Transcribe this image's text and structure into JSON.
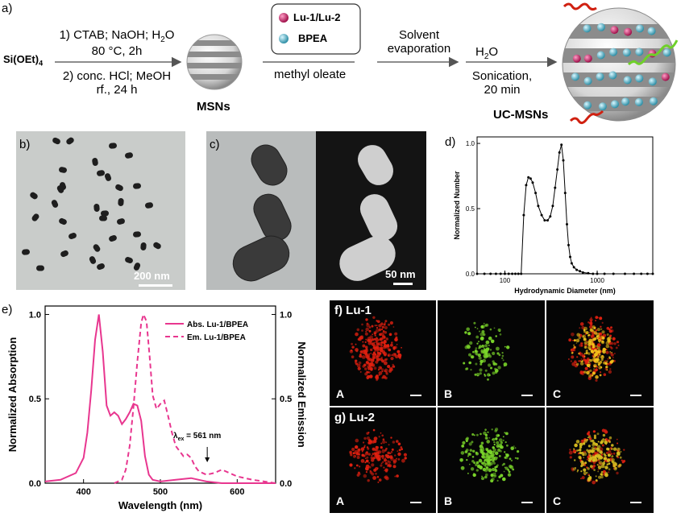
{
  "colors": {
    "accent": "#e8368f",
    "lu": "#c2185b",
    "bpea": "#5ab4c8",
    "green": "#7bd62a",
    "red": "#e02010"
  },
  "panel_a": {
    "tag": "a)",
    "reactant": "Si(OEt)",
    "reactant_sub": "4",
    "step1_line1": "1) CTAB; NaOH; H",
    "step1_line1_sub": "2",
    "step1_line1_tail": "O",
    "step1_line2": "80 °C, 2h",
    "step2_line1": "2) conc. HCl; MeOH",
    "step2_line2": "rf., 24 h",
    "msn_label": "MSNs",
    "legend_lu": "Lu-1/Lu-2",
    "legend_bpea": "BPEA",
    "methyl_oleate": "methyl oleate",
    "solvent_line1": "Solvent",
    "solvent_line2": "evaporation",
    "water": "H",
    "water_sub": "2",
    "water_tail": "O",
    "sonication_line1": "Sonication,",
    "sonication_line2": "20 min",
    "ucmsn_label": "UC-MSNs"
  },
  "panel_b": {
    "tag": "b)",
    "scale": "200 nm"
  },
  "panel_c": {
    "tag": "c)",
    "scale": "50 nm"
  },
  "panel_d": {
    "tag": "d)"
  },
  "panel_e": {
    "tag": "e)"
  },
  "panel_f": {
    "tag": "f) Lu-1",
    "labels": [
      "A",
      "B",
      "C"
    ]
  },
  "panel_g": {
    "tag": "g) Lu-2",
    "labels": [
      "A",
      "B",
      "C"
    ]
  },
  "chart_data": [
    {
      "type": "line",
      "panel": "d",
      "xlabel": "Hydrodynamic Diameter (nm)",
      "ylabel": "Normalized Number",
      "xscale": "log",
      "xlim": [
        50,
        4000
      ],
      "ylim": [
        0,
        1.05
      ],
      "xticks": [
        "100",
        "1000"
      ],
      "yticks": [
        "0.0",
        "0.5",
        "1.0"
      ],
      "x": [
        50,
        60,
        70,
        80,
        90,
        100,
        110,
        120,
        130,
        140,
        150,
        160,
        170,
        180,
        190,
        200,
        215,
        230,
        250,
        270,
        290,
        310,
        330,
        350,
        370,
        390,
        410,
        430,
        450,
        470,
        490,
        510,
        530,
        560,
        600,
        650,
        700,
        800,
        900,
        1000,
        1200,
        1500,
        2000,
        2500,
        3000,
        3500,
        4000
      ],
      "y": [
        0,
        0,
        0,
        0,
        0,
        0,
        0,
        0,
        0,
        0,
        0,
        0.45,
        0.68,
        0.74,
        0.73,
        0.7,
        0.62,
        0.52,
        0.45,
        0.41,
        0.41,
        0.44,
        0.52,
        0.66,
        0.8,
        0.93,
        0.99,
        0.87,
        0.62,
        0.38,
        0.22,
        0.13,
        0.08,
        0.05,
        0.03,
        0.02,
        0.01,
        0.005,
        0,
        0,
        0,
        0,
        0,
        0,
        0,
        0,
        0
      ]
    },
    {
      "type": "line",
      "panel": "e",
      "xlabel": "Wavelength (nm)",
      "ylabel_left": "Normalized Absorption",
      "ylabel_right": "Normalized Emission",
      "xlim": [
        350,
        650
      ],
      "ylim": [
        0,
        1.05
      ],
      "xticks": [
        "400",
        "500",
        "600"
      ],
      "yticks": [
        "0.0",
        "0.5",
        "1.0"
      ],
      "annotation": "λ",
      "annotation_sub": "ex",
      "annotation_tail": " = 561 nm",
      "series": [
        {
          "name": "Abs. Lu-1/BPEA",
          "style": "solid",
          "x": [
            350,
            370,
            390,
            400,
            405,
            410,
            415,
            420,
            425,
            430,
            435,
            440,
            445,
            450,
            455,
            460,
            465,
            470,
            475,
            480,
            485,
            490,
            500,
            520,
            540,
            550,
            560,
            580,
            600,
            620,
            650
          ],
          "y": [
            0.01,
            0.02,
            0.06,
            0.15,
            0.3,
            0.55,
            0.85,
            1.0,
            0.78,
            0.46,
            0.4,
            0.42,
            0.4,
            0.35,
            0.38,
            0.42,
            0.47,
            0.46,
            0.37,
            0.16,
            0.05,
            0.02,
            0.01,
            0.02,
            0.03,
            0.02,
            0.01,
            0.0,
            0.0,
            0.0,
            0.0
          ]
        },
        {
          "name": "Em. Lu-1/BPEA",
          "style": "dashed",
          "x": [
            440,
            450,
            455,
            460,
            465,
            470,
            475,
            478,
            482,
            486,
            490,
            495,
            500,
            505,
            510,
            515,
            520,
            530,
            535,
            540,
            545,
            550,
            560,
            570,
            580,
            600,
            620,
            650
          ],
          "y": [
            0.0,
            0.02,
            0.08,
            0.22,
            0.45,
            0.72,
            0.95,
            1.0,
            0.96,
            0.75,
            0.52,
            0.44,
            0.47,
            0.49,
            0.4,
            0.3,
            0.22,
            0.16,
            0.17,
            0.15,
            0.1,
            0.07,
            0.05,
            0.06,
            0.08,
            0.04,
            0.02,
            0.0
          ]
        }
      ]
    }
  ]
}
